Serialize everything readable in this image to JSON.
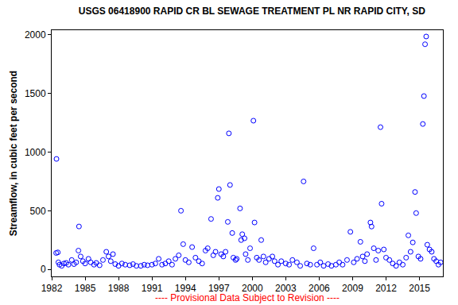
{
  "chart_data": {
    "type": "scatter",
    "title": "USGS 06418900 RAPID CR BL SEWAGE TREATMENT PL NR RAPID CITY, SD",
    "y_label": "Streamflow, in cubic feet per second",
    "annotations": [
      "---- Provisional Data Subject to Revision ----"
    ],
    "x": [
      1982.43,
      1982.4,
      1982.55,
      1982.6,
      1982.7,
      1982.9,
      1983.1,
      1983.3,
      1983.5,
      1983.8,
      1984.0,
      1984.2,
      1984.4,
      1984.45,
      1984.6,
      1984.8,
      1985.0,
      1985.3,
      1985.5,
      1985.8,
      1986.0,
      1986.3,
      1986.6,
      1986.9,
      1987.1,
      1987.3,
      1987.5,
      1987.7,
      1988.0,
      1988.3,
      1988.6,
      1989.0,
      1989.3,
      1989.6,
      1990.0,
      1990.3,
      1990.6,
      1991.0,
      1991.3,
      1991.6,
      1991.9,
      1992.2,
      1992.5,
      1992.8,
      1993.1,
      1993.4,
      1993.6,
      1993.8,
      1994.0,
      1994.3,
      1994.6,
      1994.9,
      1995.2,
      1995.5,
      1995.8,
      1996.0,
      1996.3,
      1996.5,
      1996.7,
      1996.9,
      1997.0,
      1997.2,
      1997.4,
      1997.6,
      1997.8,
      1997.9,
      1998.0,
      1998.2,
      1998.3,
      1998.5,
      1998.6,
      1998.9,
      1999.0,
      1999.1,
      1999.3,
      1999.4,
      1999.6,
      1999.8,
      2000.1,
      2000.2,
      2000.4,
      2000.6,
      2000.8,
      2001.0,
      2001.2,
      2001.5,
      2001.8,
      2002.0,
      2002.3,
      2002.6,
      2003.0,
      2003.3,
      2003.6,
      2004.0,
      2004.3,
      2004.6,
      2004.9,
      2005.2,
      2005.5,
      2005.8,
      2006.1,
      2006.4,
      2006.8,
      2007.1,
      2007.5,
      2007.8,
      2008.1,
      2008.5,
      2008.8,
      2009.1,
      2009.4,
      2009.7,
      2009.9,
      2010.1,
      2010.3,
      2010.6,
      2010.7,
      2010.9,
      2011.1,
      2011.3,
      2011.5,
      2011.6,
      2011.8,
      2012.0,
      2012.3,
      2012.6,
      2012.9,
      2013.2,
      2013.5,
      2013.8,
      2014.0,
      2014.2,
      2014.4,
      2014.6,
      2014.7,
      2014.9,
      2015.1,
      2015.3,
      2015.4,
      2015.5,
      2015.6,
      2015.7,
      2015.9,
      2016.1,
      2016.3,
      2016.5,
      2016.7,
      2016.9
    ],
    "values": [
      942,
      140,
      145,
      60,
      40,
      30,
      50,
      55,
      40,
      80,
      45,
      60,
      160,
      366,
      110,
      70,
      50,
      90,
      60,
      40,
      55,
      35,
      80,
      150,
      110,
      70,
      130,
      45,
      30,
      50,
      40,
      35,
      45,
      30,
      30,
      40,
      35,
      40,
      50,
      90,
      40,
      50,
      70,
      40,
      90,
      120,
      500,
      215,
      80,
      60,
      190,
      100,
      70,
      50,
      160,
      180,
      430,
      120,
      150,
      610,
      685,
      130,
      110,
      150,
      405,
      1160,
      720,
      310,
      100,
      80,
      90,
      520,
      250,
      300,
      265,
      130,
      80,
      180,
      1268,
      400,
      100,
      80,
      250,
      110,
      60,
      90,
      110,
      70,
      40,
      70,
      50,
      40,
      80,
      60,
      30,
      750,
      50,
      40,
      180,
      40,
      60,
      30,
      45,
      30,
      40,
      60,
      40,
      80,
      320,
      60,
      90,
      235,
      110,
      70,
      130,
      400,
      365,
      180,
      80,
      160,
      1213,
      560,
      170,
      100,
      80,
      50,
      30,
      60,
      40,
      100,
      290,
      150,
      230,
      660,
      480,
      110,
      90,
      1240,
      1478,
      1920,
      1986,
      210,
      170,
      150,
      90,
      70,
      40,
      60
    ],
    "color": "#0000ff",
    "marker": "circle-open",
    "xlim": [
      1982,
      2017.1
    ],
    "xticks": [
      1982,
      1985,
      1988,
      1991,
      1994,
      1997,
      2000,
      2003,
      2006,
      2009,
      2012,
      2015
    ],
    "ylim": [
      -60,
      2040
    ],
    "yticks": [
      0,
      500,
      1000,
      1500,
      2000
    ],
    "grid": false
  }
}
